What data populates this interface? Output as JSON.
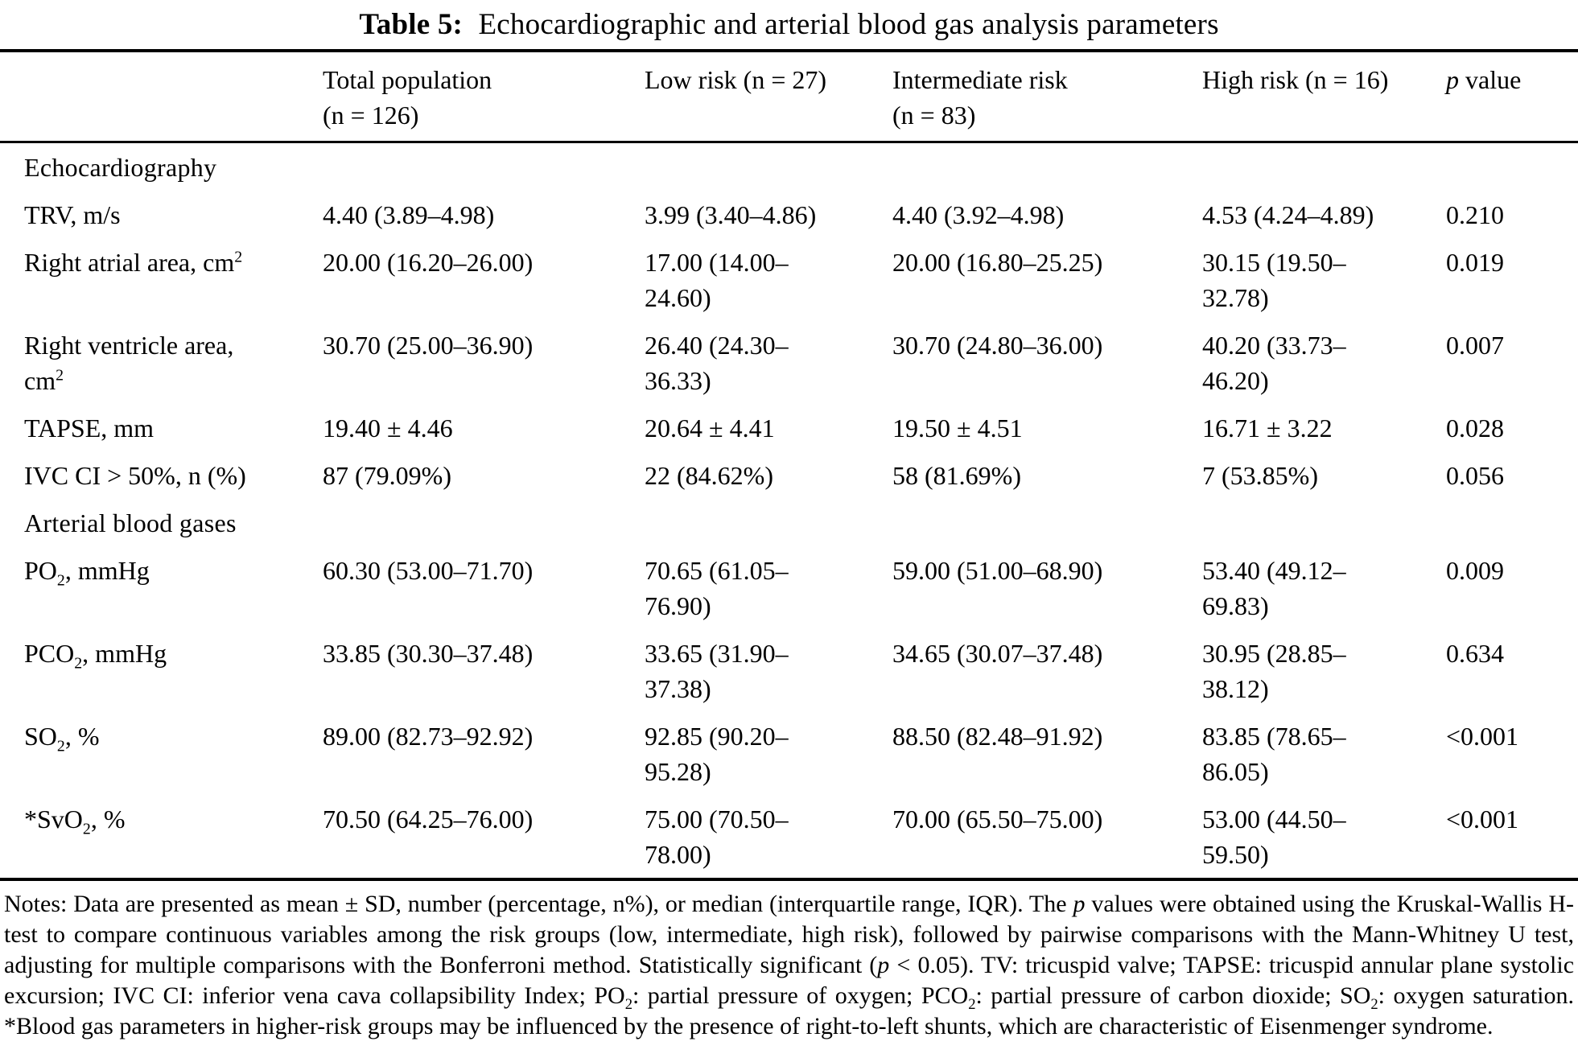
{
  "caption": {
    "runs": [
      {
        "t": "Table 5:",
        "b": true
      },
      {
        "t": " Echocardiographic and arterial blood gas analysis parameters"
      }
    ]
  },
  "header": {
    "col_param": "",
    "col_total": "Total population (n = 126)",
    "col_low": "Low risk (n = 27)",
    "col_intermediate": "Intermediate risk (n = 83)",
    "col_high": "High risk (n = 16)",
    "col_p_runs": [
      {
        "t": "p",
        "i": true
      },
      {
        "t": " value"
      }
    ]
  },
  "table": {
    "rows": [
      {
        "type": "section",
        "label": "Echocardiography"
      },
      {
        "type": "data",
        "label_runs": [
          {
            "t": "TRV, m/s"
          }
        ],
        "total": "4.40 (3.89–4.98)",
        "low": "3.99 (3.40–4.86)",
        "intermediate": "4.40 (3.92–4.98)",
        "high": "4.53 (4.24–4.89)",
        "p": "0.210"
      },
      {
        "type": "data",
        "label_runs": [
          {
            "t": "Right atrial area, cm"
          },
          {
            "t": "2",
            "sup": true
          }
        ],
        "total": "20.00 (16.20–26.00)",
        "low": "17.00 (14.00–24.60)",
        "intermediate": "20.00 (16.80–25.25)",
        "high": "30.15 (19.50–32.78)",
        "p": "0.019"
      },
      {
        "type": "data",
        "label_runs": [
          {
            "t": "Right ventricle area, cm"
          },
          {
            "t": "2",
            "sup": true
          }
        ],
        "total": "30.70 (25.00–36.90)",
        "low": "26.40 (24.30–36.33)",
        "intermediate": "30.70 (24.80–36.00)",
        "high": "40.20 (33.73–46.20)",
        "p": "0.007"
      },
      {
        "type": "data",
        "label_runs": [
          {
            "t": "TAPSE, mm"
          }
        ],
        "total": "19.40 ± 4.46",
        "low": "20.64 ± 4.41",
        "intermediate": "19.50 ± 4.51",
        "high": "16.71 ± 3.22",
        "p": "0.028"
      },
      {
        "type": "data",
        "label_runs": [
          {
            "t": "IVC CI > 50%, n (%)"
          }
        ],
        "total": "87 (79.09%)",
        "low": "22 (84.62%)",
        "intermediate": "58 (81.69%)",
        "high": "7 (53.85%)",
        "p": "0.056"
      },
      {
        "type": "section",
        "label": "Arterial blood gases"
      },
      {
        "type": "data",
        "label_runs": [
          {
            "t": "PO"
          },
          {
            "t": "2",
            "sub": true
          },
          {
            "t": ", mmHg"
          }
        ],
        "total": "60.30 (53.00–71.70)",
        "low": "70.65 (61.05–76.90)",
        "intermediate": "59.00 (51.00–68.90)",
        "high": "53.40 (49.12–69.83)",
        "p": "0.009"
      },
      {
        "type": "data",
        "label_runs": [
          {
            "t": "PCO"
          },
          {
            "t": "2",
            "sub": true
          },
          {
            "t": ", mmHg"
          }
        ],
        "total": "33.85 (30.30–37.48)",
        "low": "33.65 (31.90–37.38)",
        "intermediate": "34.65 (30.07–37.48)",
        "high": "30.95 (28.85–38.12)",
        "p": "0.634"
      },
      {
        "type": "data",
        "label_runs": [
          {
            "t": "SO"
          },
          {
            "t": "2",
            "sub": true
          },
          {
            "t": ", %"
          }
        ],
        "total": "89.00 (82.73–92.92)",
        "low": "92.85 (90.20–95.28)",
        "intermediate": "88.50 (82.48–91.92)",
        "high": "83.85 (78.65–86.05)",
        "p": "<0.001"
      },
      {
        "type": "data",
        "label_runs": [
          {
            "t": "*SvO"
          },
          {
            "t": "2",
            "sub": true
          },
          {
            "t": ", %"
          }
        ],
        "total": "70.50 (64.25–76.00)",
        "low": "75.00 (70.50–78.00)",
        "intermediate": "70.00 (65.50–75.00)",
        "high": "53.00 (44.50–59.50)",
        "p": "<0.001"
      }
    ]
  },
  "notes": {
    "runs": [
      {
        "t": "Notes: Data are presented as mean ± SD, number (percentage, n%), or median (interquartile range, IQR). The "
      },
      {
        "t": "p",
        "i": true
      },
      {
        "t": " values were obtained using the Kruskal-Wallis H-test to compare continuous variables among the risk groups (low, intermediate, high risk), followed by pairwise comparisons with the Mann-Whitney U test, adjusting for multiple comparisons with the Bonferroni method. Statistically significant ("
      },
      {
        "t": "p",
        "i": true
      },
      {
        "t": " < 0.05). TV: tricuspid valve; TAPSE: tricuspid annular plane systolic excursion; IVC CI: inferior vena cava collapsibility Index; PO"
      },
      {
        "t": "2",
        "sub": true
      },
      {
        "t": ": partial pressure of oxygen; PCO"
      },
      {
        "t": "2",
        "sub": true
      },
      {
        "t": ": partial pressure of carbon dioxide; SO"
      },
      {
        "t": "2",
        "sub": true
      },
      {
        "t": ": oxygen saturation. *Blood gas parameters in higher-risk groups may be influenced by the presence of right-to-left shunts, which are characteristic of Eisenmenger syndrome."
      }
    ]
  }
}
